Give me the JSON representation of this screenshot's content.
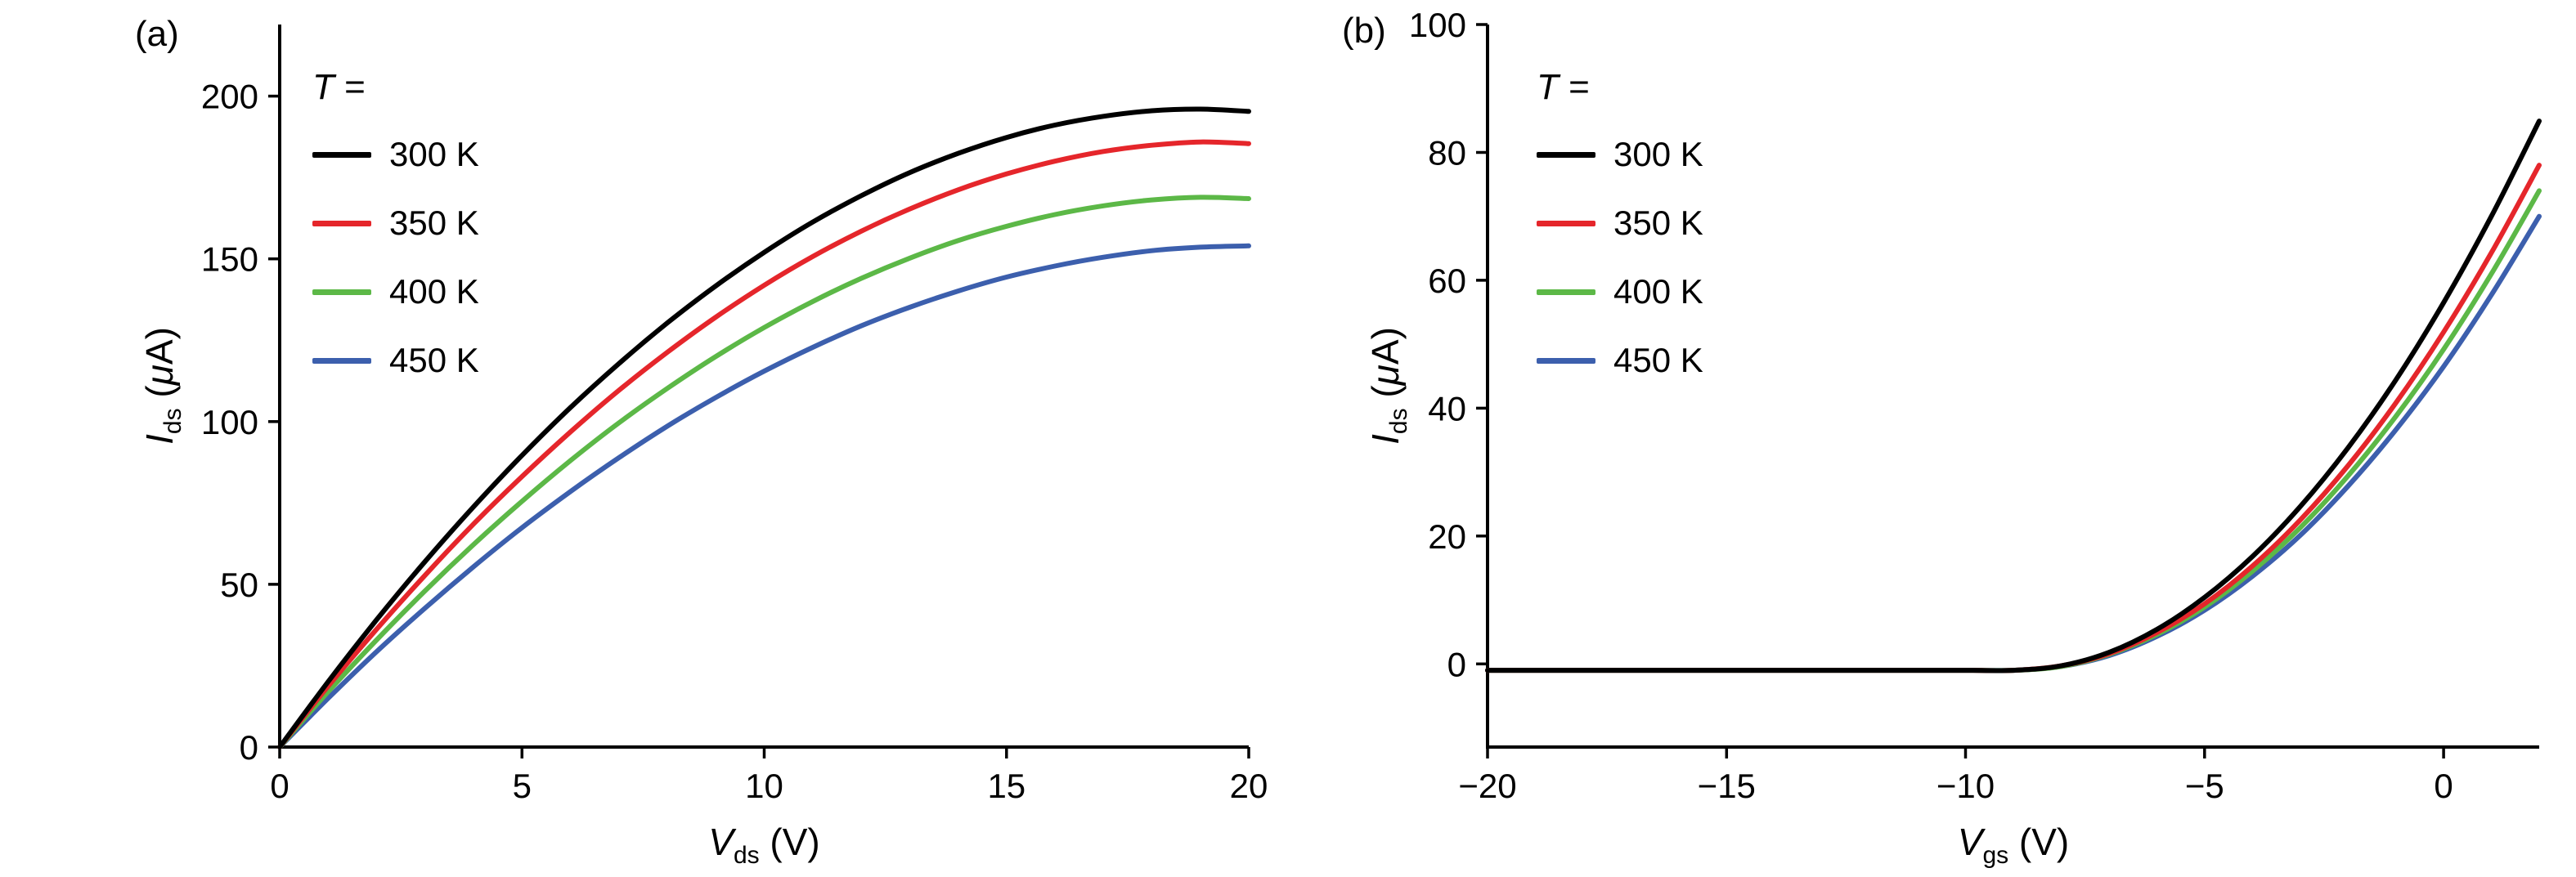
{
  "figure": {
    "panel_count": 2
  },
  "chart_data": [
    {
      "type": "line",
      "panel_label": "(a)",
      "xlabel": {
        "sym": "V",
        "sub": "ds",
        "unit_pre": " (",
        "unit_italic": "",
        "unit_post": "V)"
      },
      "ylabel": {
        "sym": "I",
        "sub": "ds",
        "unit_pre": " (",
        "unit_italic": "μ",
        "unit_post": "A)"
      },
      "xlim": [
        0,
        20
      ],
      "ylim": [
        0,
        222
      ],
      "xticks": [
        0,
        5,
        10,
        15,
        20
      ],
      "yticks": [
        0,
        50,
        100,
        150,
        200
      ],
      "grid": false,
      "legend_position": "upper-left",
      "legend_title": {
        "italic": "T",
        "rest": " ="
      },
      "series": [
        {
          "name": "300 K",
          "color": "#000000",
          "x": [
            0,
            1,
            2,
            3,
            4,
            5,
            6,
            7,
            8,
            9,
            10,
            11,
            12,
            13,
            14,
            15,
            16,
            17,
            18,
            19,
            20
          ],
          "y": [
            0,
            20.1,
            39.1,
            57.0,
            73.8,
            89.6,
            104.3,
            117.8,
            130.3,
            141.7,
            152.0,
            161.3,
            169.4,
            176.5,
            182.4,
            187.3,
            191.1,
            193.8,
            195.5,
            196.0,
            195.3
          ]
        },
        {
          "name": "350 K",
          "color": "#e5262b",
          "x": [
            0,
            1,
            2,
            3,
            4,
            5,
            6,
            7,
            8,
            9,
            10,
            11,
            12,
            13,
            14,
            15,
            16,
            17,
            18,
            19,
            20
          ],
          "y": [
            0,
            18.7,
            36.2,
            52.8,
            68.5,
            83.1,
            96.8,
            109.6,
            121.3,
            132.1,
            141.9,
            150.7,
            158.5,
            165.3,
            171.2,
            176.1,
            180.0,
            183.0,
            184.9,
            185.9,
            185.4
          ]
        },
        {
          "name": "400 K",
          "color": "#5cb847",
          "x": [
            0,
            1,
            2,
            3,
            4,
            5,
            6,
            7,
            8,
            9,
            10,
            11,
            12,
            13,
            14,
            15,
            16,
            17,
            18,
            19,
            20
          ],
          "y": [
            0,
            17.0,
            32.9,
            48.0,
            62.2,
            75.5,
            88.0,
            99.6,
            110.2,
            120.0,
            128.9,
            136.9,
            144.0,
            150.2,
            155.6,
            160.0,
            163.6,
            166.3,
            168.1,
            168.9,
            168.5
          ]
        },
        {
          "name": "450 K",
          "color": "#3c5fad",
          "x": [
            0,
            1,
            2,
            3,
            4,
            5,
            6,
            7,
            8,
            9,
            10,
            11,
            12,
            13,
            14,
            15,
            16,
            17,
            18,
            19,
            20
          ],
          "y": [
            0,
            15.0,
            29.3,
            42.7,
            55.4,
            67.4,
            78.5,
            88.9,
            98.6,
            107.4,
            115.5,
            122.8,
            129.4,
            135.1,
            140.1,
            144.4,
            147.8,
            150.5,
            152.5,
            153.6,
            154.0
          ]
        }
      ]
    },
    {
      "type": "line",
      "panel_label": "(b)",
      "xlabel": {
        "sym": "V",
        "sub": "gs",
        "unit_pre": " (",
        "unit_italic": "",
        "unit_post": "V)"
      },
      "ylabel": {
        "sym": "I",
        "sub": "ds",
        "unit_pre": " (",
        "unit_italic": "μ",
        "unit_post": "A)"
      },
      "xlim": [
        -20,
        2
      ],
      "ylim": [
        -13,
        100
      ],
      "xticks": [
        -20,
        -15,
        -10,
        -5,
        0
      ],
      "yticks": [
        0,
        20,
        40,
        60,
        80,
        100
      ],
      "grid": false,
      "legend_position": "upper-left",
      "legend_title": {
        "italic": "T",
        "rest": " ="
      },
      "series": [
        {
          "name": "300 K",
          "color": "#000000",
          "x": [
            -20,
            -19,
            -18,
            -17,
            -16,
            -15,
            -14,
            -13,
            -12,
            -11,
            -10,
            -9,
            -8,
            -7,
            -6,
            -5,
            -4,
            -3,
            -2,
            -1,
            0,
            1,
            2
          ],
          "y": [
            -1,
            -1,
            -1,
            -1,
            -1,
            -1,
            -1,
            -1,
            -1,
            -1,
            -1,
            -1,
            -0.3,
            1.8,
            5.4,
            10.4,
            16.8,
            24.6,
            33.8,
            44.4,
            56.5,
            70.0,
            84.9
          ]
        },
        {
          "name": "350 K",
          "color": "#e5262b",
          "x": [
            -20,
            -19,
            -18,
            -17,
            -16,
            -15,
            -14,
            -13,
            -12,
            -11,
            -10,
            -9,
            -8,
            -7,
            -6,
            -5,
            -4,
            -3,
            -2,
            -1,
            0,
            1,
            2
          ],
          "y": [
            -1,
            -1,
            -1,
            -1,
            -1,
            -1,
            -1,
            -1,
            -1,
            -1,
            -1,
            -1,
            -0.3,
            1.6,
            4.9,
            9.4,
            15.3,
            22.5,
            31.0,
            40.8,
            51.9,
            64.3,
            78.0
          ]
        },
        {
          "name": "400 K",
          "color": "#5cb847",
          "x": [
            -20,
            -19,
            -18,
            -17,
            -16,
            -15,
            -14,
            -13,
            -12,
            -11,
            -10,
            -9,
            -8,
            -7,
            -6,
            -5,
            -4,
            -3,
            -2,
            -1,
            0,
            1,
            2
          ],
          "y": [
            -1,
            -1,
            -1,
            -1,
            -1,
            -1,
            -1,
            -1,
            -1,
            -1,
            -1,
            -1,
            -0.4,
            1.5,
            4.6,
            8.9,
            14.5,
            21.3,
            29.4,
            38.7,
            49.2,
            61.0,
            74.0
          ]
        },
        {
          "name": "450 K",
          "color": "#3c5fad",
          "x": [
            -20,
            -19,
            -18,
            -17,
            -16,
            -15,
            -14,
            -13,
            -12,
            -11,
            -10,
            -9,
            -8,
            -7,
            -6,
            -5,
            -4,
            -3,
            -2,
            -1,
            0,
            1,
            2
          ],
          "y": [
            -1,
            -1,
            -1,
            -1,
            -1,
            -1,
            -1,
            -1,
            -1,
            -1,
            -1,
            -1,
            -0.4,
            1.3,
            4.3,
            8.4,
            13.7,
            20.1,
            27.8,
            36.6,
            46.5,
            57.7,
            70.0
          ]
        }
      ]
    }
  ]
}
